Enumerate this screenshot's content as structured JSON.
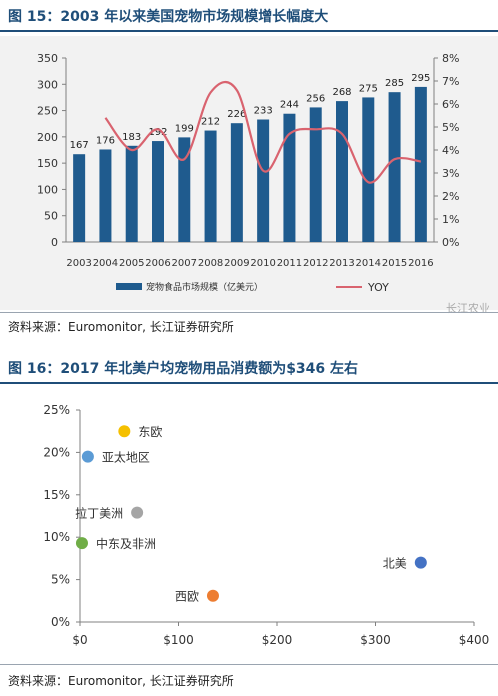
{
  "figure1": {
    "title": "图 15：2003 年以来美国宠物市场规模增长幅度大",
    "source": "资料来源：Euromonitor, 长江证券研究所",
    "watermark": "长江农业"
  },
  "figure2": {
    "title": "图 16：2017 年北美户均宠物用品消费额为$346 左右",
    "source": "资料来源：Euromonitor, 长江证券研究所"
  },
  "chart_data": [
    {
      "type": "bar",
      "categories": [
        "2003",
        "2004",
        "2005",
        "2006",
        "2007",
        "2008",
        "2009",
        "2010",
        "2011",
        "2012",
        "2013",
        "2014",
        "2015",
        "2016"
      ],
      "series": [
        {
          "name": "宠物食品市场规模（亿美元）",
          "type": "bar",
          "axis": "left",
          "values": [
            167,
            176,
            183,
            192,
            199,
            212,
            226,
            233,
            244,
            256,
            268,
            275,
            285,
            295
          ],
          "color": "#1f5b8e"
        },
        {
          "name": "YOY",
          "type": "line",
          "axis": "right",
          "values": [
            null,
            0.054,
            0.04,
            0.049,
            0.036,
            0.065,
            0.066,
            0.031,
            0.047,
            0.049,
            0.047,
            0.026,
            0.036,
            0.035
          ],
          "color": "#d9636f"
        }
      ],
      "ylim": [
        0,
        350
      ],
      "yticks": [
        0,
        50,
        100,
        150,
        200,
        250,
        300,
        350
      ],
      "y2lim": [
        0,
        0.08
      ],
      "y2ticks": [
        "0%",
        "1%",
        "2%",
        "3%",
        "4%",
        "5%",
        "6%",
        "7%",
        "8%"
      ],
      "legend_position": "bottom",
      "grid": false
    },
    {
      "type": "scatter",
      "xlim": [
        0,
        400
      ],
      "ylim": [
        0,
        0.25
      ],
      "xticks": [
        "$0",
        "$100",
        "$200",
        "$300",
        "$400"
      ],
      "yticks": [
        "0%",
        "5%",
        "10%",
        "15%",
        "20%",
        "25%"
      ],
      "points": [
        {
          "label": "东欧",
          "x": 45,
          "y": 0.225,
          "color": "#f5c000",
          "label_side": "right"
        },
        {
          "label": "亚太地区",
          "x": 8,
          "y": 0.195,
          "color": "#5b9bd5",
          "label_side": "right"
        },
        {
          "label": "拉丁美洲",
          "x": 58,
          "y": 0.129,
          "color": "#a5a5a5",
          "label_side": "left"
        },
        {
          "label": "中东及非洲",
          "x": 2,
          "y": 0.093,
          "color": "#70ad47",
          "label_side": "right"
        },
        {
          "label": "北美",
          "x": 346,
          "y": 0.07,
          "color": "#4472c4",
          "label_side": "left"
        },
        {
          "label": "西欧",
          "x": 135,
          "y": 0.031,
          "color": "#ed7d31",
          "label_side": "left"
        }
      ],
      "grid": false
    }
  ]
}
